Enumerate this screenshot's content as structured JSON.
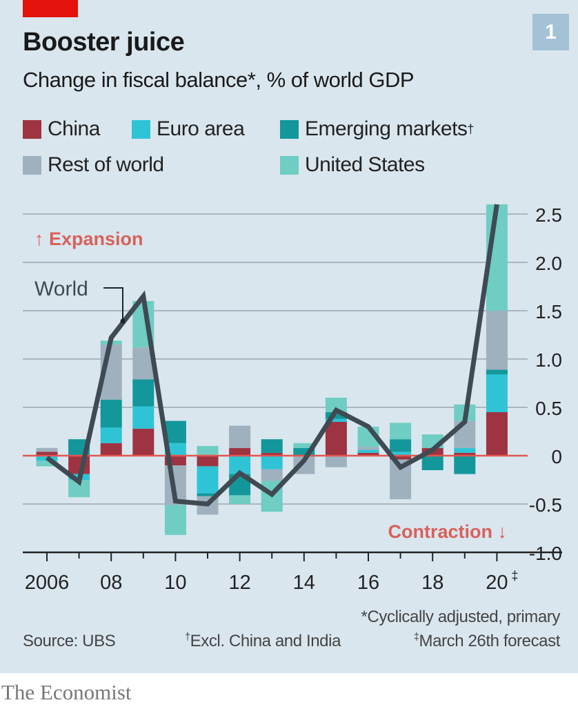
{
  "header": {
    "chart_number": "1",
    "title": "Booster juice",
    "subtitle": "Change in fiscal balance*, % of world GDP"
  },
  "colors": {
    "background": "#d9e6ee",
    "brand_red": "#e3120b",
    "China": "#9e3442",
    "Euro area": "#2ec4d6",
    "Emerging markets": "#13979a",
    "Rest of world": "#9fb1be",
    "United States": "#6fcdc3",
    "World": "#3f4a53",
    "zero_line": "#e0574f",
    "annotation": "#d9605a"
  },
  "footer": {
    "source": "Source: UBS",
    "note_asterisk": "*Cyclically adjusted, primary",
    "note_dagger": "Excl. China and India",
    "note_dagger_mark": "†",
    "note_ddagger": "March 26th forecast",
    "note_ddagger_mark": "‡",
    "brand": "The Economist"
  },
  "chart_data": {
    "type": "bar",
    "stacked": true,
    "title": "Booster juice",
    "subtitle": "Change in fiscal balance*, % of world GDP",
    "xlabel": "",
    "ylabel": "% of world GDP",
    "ylim": [
      -1.0,
      2.5
    ],
    "yticks": [
      2.5,
      2.0,
      1.5,
      1.0,
      0.5,
      0,
      -0.5,
      -1.0
    ],
    "ytick_labels": [
      "2.5",
      "2.0",
      "1.5",
      "1.0",
      "0.5",
      "0",
      "-0.5",
      "-1.0"
    ],
    "y_axis_side": "right",
    "grid": true,
    "legend_position": "top",
    "categories": [
      "2006",
      "2007",
      "2008",
      "2009",
      "2010",
      "2011",
      "2012",
      "2013",
      "2014",
      "2015",
      "2016",
      "2017",
      "2018",
      "2019",
      "2020"
    ],
    "xtick_labels": [
      "2006",
      "08",
      "10",
      "12",
      "14",
      "16",
      "18",
      "20"
    ],
    "xtick_label_years": [
      "2006",
      "2008",
      "2010",
      "2012",
      "2014",
      "2016",
      "2018",
      "2020"
    ],
    "xtick_last_mark": "‡",
    "legend": [
      {
        "name": "China",
        "mark": ""
      },
      {
        "name": "Euro area",
        "mark": ""
      },
      {
        "name": "Emerging markets",
        "mark": "†"
      },
      {
        "name": "Rest of world",
        "mark": ""
      },
      {
        "name": "United States",
        "mark": ""
      }
    ],
    "series": [
      {
        "name": "China",
        "values": [
          0.04,
          -0.19,
          0.13,
          0.28,
          -0.1,
          -0.11,
          0.08,
          0.03,
          0.0,
          0.35,
          0.03,
          -0.04,
          0.08,
          0.03,
          0.45
        ]
      },
      {
        "name": "Euro area",
        "values": [
          -0.05,
          -0.06,
          0.16,
          0.23,
          0.13,
          -0.28,
          -0.19,
          -0.14,
          0.0,
          0.03,
          0.03,
          0.04,
          0.0,
          0.05,
          0.39
        ]
      },
      {
        "name": "Emerging markets",
        "values": [
          0.0,
          0.17,
          0.29,
          0.28,
          0.23,
          -0.03,
          -0.22,
          0.14,
          0.08,
          0.07,
          0.0,
          0.13,
          -0.15,
          -0.19,
          0.05
        ]
      },
      {
        "name": "Rest of world",
        "values": [
          0.04,
          0.0,
          0.57,
          0.33,
          -0.41,
          -0.19,
          0.23,
          -0.12,
          -0.19,
          -0.12,
          0.03,
          -0.41,
          0.0,
          0.28,
          0.61
        ]
      },
      {
        "name": "United States",
        "values": [
          -0.06,
          -0.18,
          0.04,
          0.48,
          -0.31,
          0.1,
          -0.09,
          -0.32,
          0.05,
          0.15,
          0.21,
          0.17,
          0.14,
          0.17,
          1.1
        ]
      }
    ],
    "line_series": {
      "name": "World",
      "values": [
        -0.02,
        -0.27,
        1.22,
        1.65,
        -0.47,
        -0.5,
        -0.18,
        -0.4,
        -0.05,
        0.47,
        0.3,
        -0.12,
        0.06,
        0.35,
        2.6
      ]
    },
    "annotations": [
      {
        "text": "↑ Expansion",
        "at": "upper-left"
      },
      {
        "text": "Contraction ↓",
        "at": "lower-right"
      },
      {
        "text": "World",
        "points_to": "World line, 2008–09"
      }
    ]
  }
}
